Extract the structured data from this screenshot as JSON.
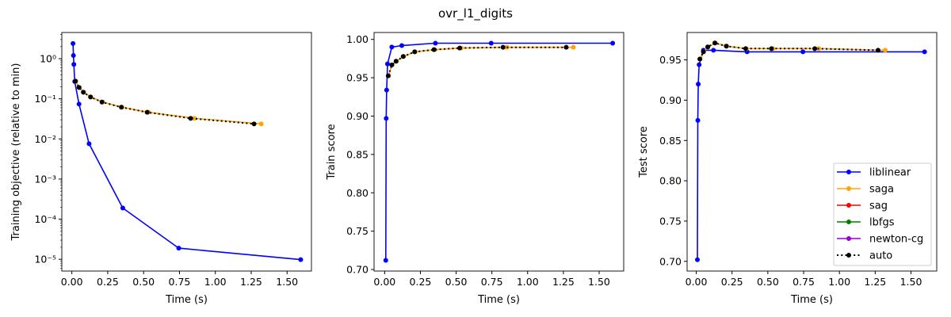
{
  "figure": {
    "title": "ovr_l1_digits"
  },
  "colors": {
    "liblinear": "#0000ff",
    "saga": "#ffa500",
    "sag": "#ff0000",
    "lbfgs": "#008000",
    "newton-cg": "#9400d3",
    "auto": "#000000"
  },
  "legend": {
    "placement": "lower-right",
    "panel": 2,
    "entries": [
      {
        "name": "liblinear",
        "style": "solid"
      },
      {
        "name": "saga",
        "style": "solid"
      },
      {
        "name": "sag",
        "style": "solid"
      },
      {
        "name": "lbfgs",
        "style": "solid"
      },
      {
        "name": "newton-cg",
        "style": "solid"
      },
      {
        "name": "auto",
        "style": "dotted"
      }
    ]
  },
  "chart_data": [
    {
      "type": "line",
      "xlabel": "Time (s)",
      "ylabel": "Training objective (relative to min)",
      "yscale": "log",
      "xlim": [
        -0.07,
        1.67
      ],
      "ylim": [
        5.1e-06,
        4.5
      ],
      "grid": false,
      "xticks": [
        0,
        0.25,
        0.5,
        0.75,
        1.0,
        1.25,
        1.5
      ],
      "xtick_labels": [
        "0.00",
        "0.25",
        "0.50",
        "0.75",
        "1.00",
        "1.25",
        "1.50"
      ],
      "yticks": [
        1,
        0.1,
        0.01,
        0.001,
        0.0001,
        1e-05
      ],
      "ytick_labels": [
        "10⁰",
        "10⁻¹",
        "10⁻²",
        "10⁻³",
        "10⁻⁴",
        "10⁻⁵"
      ],
      "series": [
        {
          "name": "liblinear",
          "x": [
            0.008,
            0.011,
            0.014,
            0.02,
            0.05,
            0.12,
            0.355,
            0.745,
            1.595
          ],
          "y": [
            2.4,
            1.2,
            0.72,
            0.27,
            0.074,
            0.0076,
            0.00019,
            1.9e-05,
            9.8e-06
          ]
        },
        {
          "name": "saga",
          "x": [
            0.027,
            0.052,
            0.082,
            0.133,
            0.213,
            0.35,
            0.535,
            0.855,
            1.32
          ],
          "y": [
            0.276,
            0.192,
            0.146,
            0.111,
            0.083,
            0.0617,
            0.0462,
            0.0326,
            0.0237
          ]
        },
        {
          "name": "auto",
          "x": [
            0.025,
            0.05,
            0.08,
            0.13,
            0.21,
            0.345,
            0.525,
            0.828,
            1.27
          ],
          "y": [
            0.276,
            0.192,
            0.146,
            0.111,
            0.083,
            0.0617,
            0.0462,
            0.0326,
            0.0237
          ]
        }
      ]
    },
    {
      "type": "line",
      "xlabel": "Time (s)",
      "ylabel": "Train score",
      "yscale": "linear",
      "xlim": [
        -0.074,
        1.672
      ],
      "ylim": [
        0.698,
        1.009
      ],
      "grid": false,
      "xticks": [
        0,
        0.25,
        0.5,
        0.75,
        1.0,
        1.25,
        1.5
      ],
      "xtick_labels": [
        "0.00",
        "0.25",
        "0.50",
        "0.75",
        "1.00",
        "1.25",
        "1.50"
      ],
      "yticks": [
        0.7,
        0.75,
        0.8,
        0.85,
        0.9,
        0.95,
        1.0
      ],
      "ytick_labels": [
        "0.70",
        "0.75",
        "0.80",
        "0.85",
        "0.90",
        "0.95",
        "1.00"
      ],
      "series": [
        {
          "name": "liblinear",
          "x": [
            0.008,
            0.011,
            0.014,
            0.02,
            0.05,
            0.12,
            0.355,
            0.745,
            1.595
          ],
          "y": [
            0.712,
            0.897,
            0.934,
            0.968,
            0.99,
            0.992,
            0.995,
            0.995,
            0.995
          ]
        },
        {
          "name": "saga",
          "x": [
            0.027,
            0.052,
            0.082,
            0.133,
            0.213,
            0.35,
            0.535,
            0.855,
            1.32
          ],
          "y": [
            0.9526,
            0.9667,
            0.9715,
            0.9777,
            0.9838,
            0.9866,
            0.9887,
            0.9897,
            0.9897
          ]
        },
        {
          "name": "auto",
          "x": [
            0.025,
            0.05,
            0.08,
            0.13,
            0.21,
            0.345,
            0.525,
            0.828,
            1.27
          ],
          "y": [
            0.9526,
            0.9667,
            0.9715,
            0.9777,
            0.9838,
            0.9866,
            0.9887,
            0.9897,
            0.9897
          ]
        }
      ]
    },
    {
      "type": "line",
      "xlabel": "Time (s)",
      "ylabel": "Test score",
      "yscale": "linear",
      "xlim": [
        -0.064,
        1.68
      ],
      "ylim": [
        0.688,
        0.984
      ],
      "grid": false,
      "xticks": [
        0,
        0.25,
        0.5,
        0.75,
        1.0,
        1.25,
        1.5
      ],
      "xtick_labels": [
        "0.00",
        "0.25",
        "0.50",
        "0.75",
        "1.00",
        "1.25",
        "1.50"
      ],
      "yticks": [
        0.7,
        0.75,
        0.8,
        0.85,
        0.9,
        0.95
      ],
      "ytick_labels": [
        "0.70",
        "0.75",
        "0.80",
        "0.85",
        "0.90",
        "0.95"
      ],
      "series": [
        {
          "name": "liblinear",
          "x": [
            0.008,
            0.011,
            0.014,
            0.02,
            0.05,
            0.12,
            0.355,
            0.745,
            1.595
          ],
          "y": [
            0.702,
            0.875,
            0.92,
            0.944,
            0.962,
            0.962,
            0.96,
            0.96,
            0.96
          ]
        },
        {
          "name": "saga",
          "x": [
            0.027,
            0.052,
            0.082,
            0.133,
            0.213,
            0.35,
            0.535,
            0.855,
            1.32
          ],
          "y": [
            0.951,
            0.96,
            0.966,
            0.971,
            0.967,
            0.964,
            0.964,
            0.964,
            0.962
          ]
        },
        {
          "name": "auto",
          "x": [
            0.025,
            0.05,
            0.08,
            0.13,
            0.21,
            0.345,
            0.525,
            0.828,
            1.27
          ],
          "y": [
            0.951,
            0.96,
            0.966,
            0.971,
            0.967,
            0.964,
            0.964,
            0.964,
            0.962
          ]
        }
      ]
    }
  ]
}
